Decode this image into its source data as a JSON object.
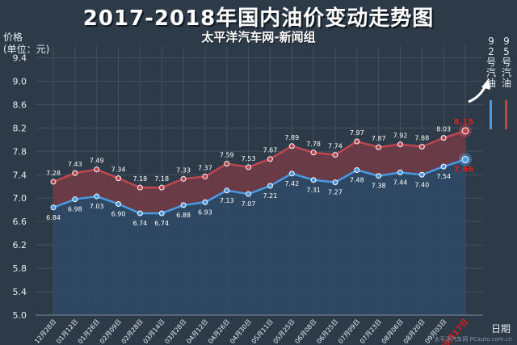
{
  "title": "2017-2018年国内油价变动走势图",
  "subtitle": "太平洋汽车网-新闻组",
  "y_unit": [
    "价格",
    "(单位：元)"
  ],
  "x_axis_name": "日期",
  "watermark": "太平洋汽车网 PCauto.com.cn",
  "legend": [
    {
      "name": "92号汽油",
      "color": "#4a9be6"
    },
    {
      "name": "95号汽油",
      "color": "#c0474f"
    }
  ],
  "chart_data": {
    "type": "area",
    "categories": [
      "12月28日",
      "01月12日",
      "01月26日",
      "02月09日",
      "02月28日",
      "03月14日",
      "03月28日",
      "04月12日",
      "04月26日",
      "04月30日",
      "05月11日",
      "05月25日",
      "06月08日",
      "06月25日",
      "07月09日",
      "07月23日",
      "08月06日",
      "08月20日",
      "09月03日",
      "09月17日"
    ],
    "series": [
      {
        "name": "92号汽油",
        "values": [
          6.84,
          6.98,
          7.03,
          6.9,
          6.74,
          6.74,
          6.88,
          6.93,
          7.13,
          7.07,
          7.21,
          7.42,
          7.31,
          7.27,
          7.48,
          7.38,
          7.44,
          7.4,
          7.54,
          7.66
        ]
      },
      {
        "name": "95号汽油",
        "values": [
          7.28,
          7.43,
          7.49,
          7.34,
          7.18,
          7.18,
          7.33,
          7.37,
          7.59,
          7.53,
          7.67,
          7.89,
          7.78,
          7.74,
          7.97,
          7.87,
          7.92,
          7.88,
          8.03,
          8.15
        ]
      }
    ],
    "y_ticks": [
      "5.0",
      "5.4",
      "5.8",
      "6.2",
      "6.6",
      "7.0",
      "7.4",
      "7.8",
      "8.2",
      "8.6",
      "9.0",
      "9.4"
    ],
    "ylim": [
      5.0,
      9.6
    ],
    "grid": true,
    "highlight_last": {
      "series_colors": [
        "#e11b1b",
        "#e11b1b"
      ]
    },
    "colors": {
      "line92": "#4a9be6",
      "line95": "#c0474f",
      "fill95": "#6b3b47",
      "fill92": "#2f4a66",
      "grid": "#43505e",
      "label": "#ffffff",
      "highlight_label": "#e11b1b"
    }
  }
}
